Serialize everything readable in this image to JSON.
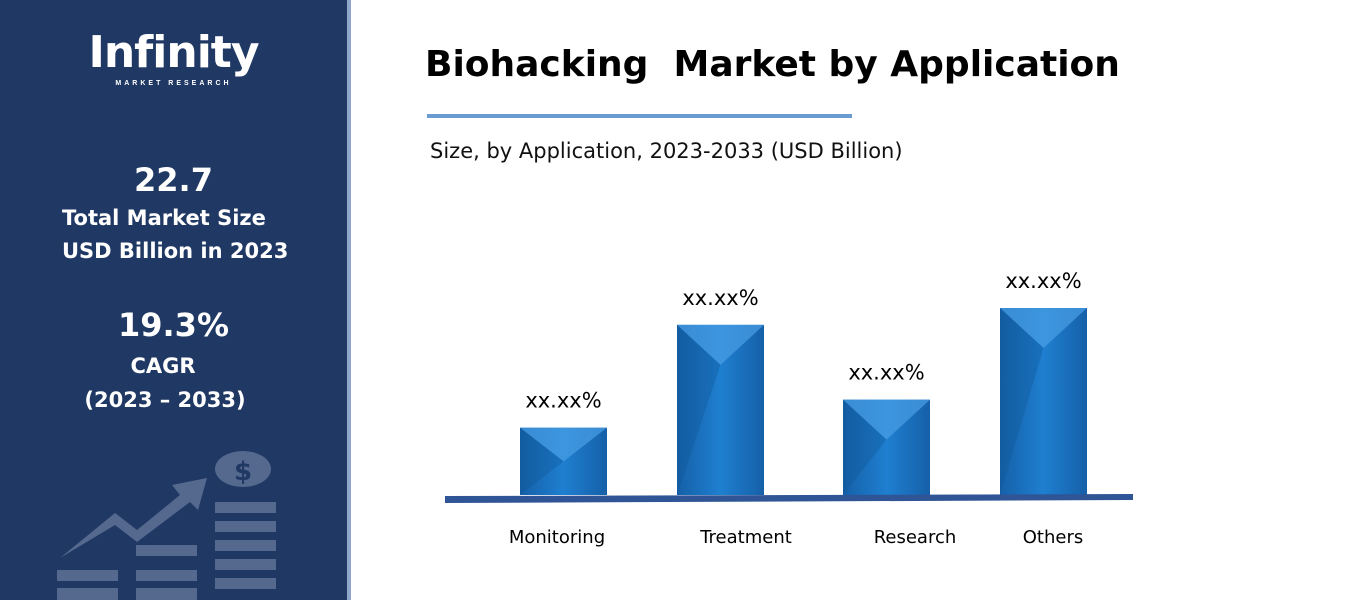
{
  "sidebar": {
    "logo_text": "Infinity",
    "logo_sub": "MARKET RESEARCH",
    "market_size": "22.7",
    "market_size_label1": "Total Market Size",
    "market_size_label2": "USD Billion in 2023",
    "cagr": "19.3%",
    "cagr_label": "CAGR",
    "cagr_period": "(2023 – 2033)",
    "decor_icon": "growth-chart-dollar-icon"
  },
  "colors": {
    "sidebar": "#203864",
    "bar": "#1f78c8",
    "baseline": "#2f5597"
  },
  "chart_data": {
    "type": "bar",
    "title": "Biohacking  Market by Application",
    "subtitle": "Size, by Application, 2023-2033 (USD Billion)",
    "categories": [
      "Monitoring",
      "Treatment",
      "Research",
      "Others"
    ],
    "relative_values": [
      0.36,
      0.91,
      0.51,
      1.0
    ],
    "data_labels": [
      "xx.xx%",
      "xx.xx%",
      "xx.xx%",
      "xx.xx%"
    ],
    "grid": false,
    "legend": "none"
  }
}
